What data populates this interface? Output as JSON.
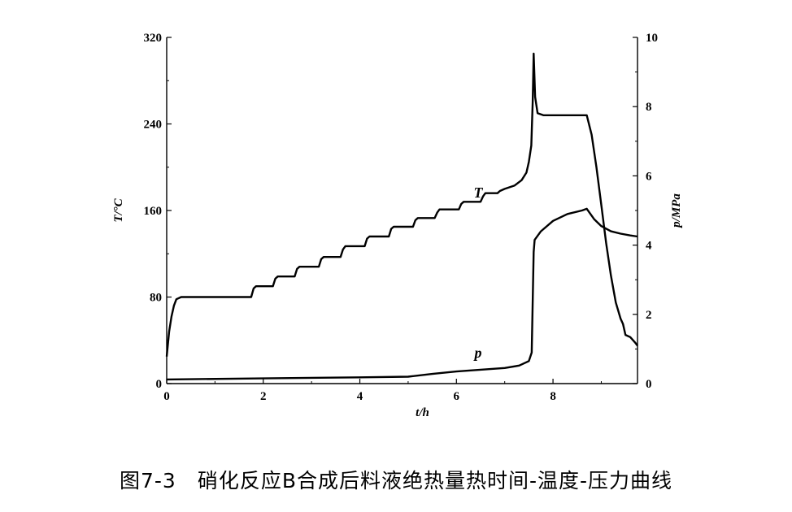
{
  "caption": "图7-3　硝化反应B合成后料液绝热量热时间-温度-压力曲线",
  "chart_data": {
    "type": "line",
    "xlabel": "t/h",
    "ylabel_left": "T/°C",
    "ylabel_right": "p/MPa",
    "xlim": [
      0,
      9.75
    ],
    "ylim_left": [
      0,
      320
    ],
    "ylim_right": [
      0,
      10
    ],
    "x_ticks": [
      0,
      2,
      4,
      6,
      8
    ],
    "y_left_ticks": [
      0,
      80,
      160,
      240,
      320
    ],
    "y_right_ticks": [
      0,
      2,
      4,
      6,
      8,
      10
    ],
    "grid": false,
    "series": [
      {
        "name": "T",
        "axis": "left",
        "points": [
          [
            0.0,
            25
          ],
          [
            0.05,
            48
          ],
          [
            0.1,
            62
          ],
          [
            0.15,
            72
          ],
          [
            0.2,
            78
          ],
          [
            0.3,
            80
          ],
          [
            1.75,
            80
          ],
          [
            1.8,
            88
          ],
          [
            1.85,
            90
          ],
          [
            2.2,
            90
          ],
          [
            2.25,
            97
          ],
          [
            2.3,
            99
          ],
          [
            2.65,
            99
          ],
          [
            2.7,
            106
          ],
          [
            2.75,
            108
          ],
          [
            3.15,
            108
          ],
          [
            3.2,
            115
          ],
          [
            3.25,
            117
          ],
          [
            3.6,
            117
          ],
          [
            3.65,
            124
          ],
          [
            3.7,
            127
          ],
          [
            4.1,
            127
          ],
          [
            4.15,
            134
          ],
          [
            4.2,
            136
          ],
          [
            4.6,
            136
          ],
          [
            4.65,
            143
          ],
          [
            4.7,
            145
          ],
          [
            5.1,
            145
          ],
          [
            5.15,
            151
          ],
          [
            5.2,
            153
          ],
          [
            5.55,
            153
          ],
          [
            5.6,
            158
          ],
          [
            5.65,
            161
          ],
          [
            6.05,
            161
          ],
          [
            6.1,
            166
          ],
          [
            6.15,
            168
          ],
          [
            6.5,
            168
          ],
          [
            6.55,
            173
          ],
          [
            6.6,
            176
          ],
          [
            6.85,
            176
          ],
          [
            6.9,
            178
          ],
          [
            7.0,
            180
          ],
          [
            7.2,
            183
          ],
          [
            7.35,
            188
          ],
          [
            7.45,
            195
          ],
          [
            7.5,
            205
          ],
          [
            7.55,
            220
          ],
          [
            7.58,
            260
          ],
          [
            7.6,
            305
          ],
          [
            7.63,
            265
          ],
          [
            7.68,
            250
          ],
          [
            7.8,
            248
          ],
          [
            8.7,
            248
          ],
          [
            8.8,
            230
          ],
          [
            8.9,
            200
          ],
          [
            9.0,
            165
          ],
          [
            9.1,
            130
          ],
          [
            9.2,
            100
          ],
          [
            9.3,
            75
          ],
          [
            9.4,
            60
          ],
          [
            9.45,
            55
          ],
          [
            9.5,
            45
          ],
          [
            9.6,
            43
          ],
          [
            9.7,
            38
          ],
          [
            9.75,
            35
          ]
        ]
      },
      {
        "name": "p",
        "axis": "right",
        "points": [
          [
            0.0,
            0.12
          ],
          [
            2.0,
            0.15
          ],
          [
            4.0,
            0.18
          ],
          [
            5.0,
            0.2
          ],
          [
            5.5,
            0.28
          ],
          [
            6.0,
            0.35
          ],
          [
            7.0,
            0.45
          ],
          [
            7.3,
            0.52
          ],
          [
            7.5,
            0.65
          ],
          [
            7.56,
            0.9
          ],
          [
            7.6,
            3.8
          ],
          [
            7.62,
            4.15
          ],
          [
            7.75,
            4.4
          ],
          [
            8.0,
            4.7
          ],
          [
            8.3,
            4.9
          ],
          [
            8.6,
            5.0
          ],
          [
            8.7,
            5.05
          ],
          [
            8.85,
            4.75
          ],
          [
            9.0,
            4.55
          ],
          [
            9.2,
            4.4
          ],
          [
            9.4,
            4.33
          ],
          [
            9.6,
            4.28
          ],
          [
            9.75,
            4.25
          ]
        ]
      }
    ],
    "annotations": [
      {
        "text": "T",
        "x": 6.45,
        "y_left": 172
      },
      {
        "text": "p",
        "x": 6.45,
        "y_right": 0.75
      }
    ]
  }
}
